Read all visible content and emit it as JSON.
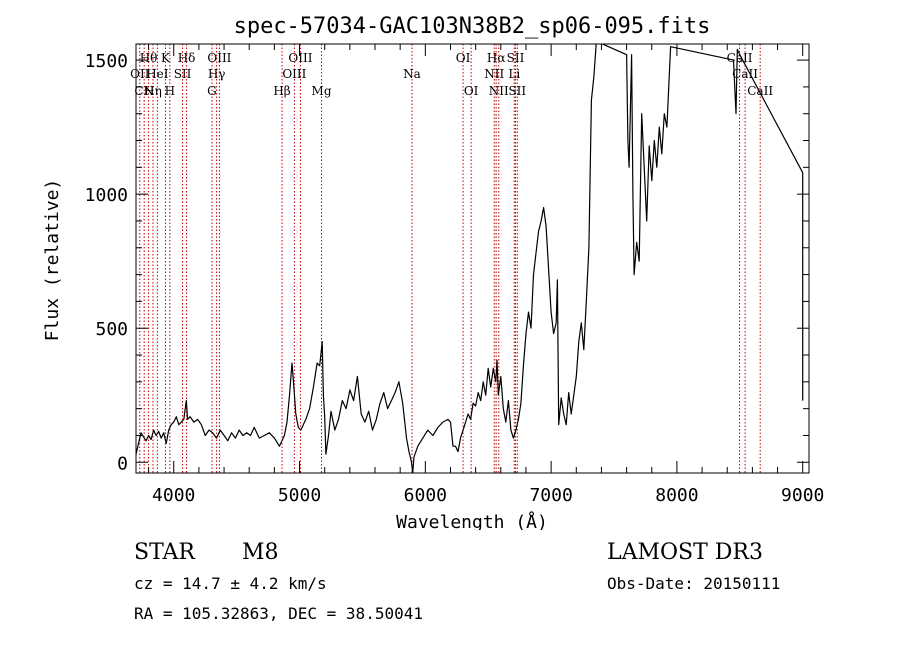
{
  "chart_data": {
    "type": "line",
    "title": "spec-57034-GAC103N38B2_sp06-095.fits",
    "xlabel": "Wavelength (Å)",
    "ylabel": "Flux (relative)",
    "xlim": [
      3700,
      9050
    ],
    "ylim": [
      -40,
      1560
    ],
    "xticks": [
      4000,
      5000,
      6000,
      7000,
      8000,
      9000
    ],
    "yticks": [
      0,
      500,
      1000,
      1500
    ],
    "line_color": "#000000",
    "marker_color": "#c00000",
    "grid": false,
    "series": [
      {
        "values": [
          [
            3700,
            30
          ],
          [
            3720,
            70
          ],
          [
            3740,
            110
          ],
          [
            3760,
            95
          ],
          [
            3780,
            80
          ],
          [
            3800,
            100
          ],
          [
            3820,
            85
          ],
          [
            3840,
            120
          ],
          [
            3860,
            100
          ],
          [
            3880,
            115
          ],
          [
            3900,
            90
          ],
          [
            3920,
            110
          ],
          [
            3940,
            70
          ],
          [
            3960,
            120
          ],
          [
            3980,
            140
          ],
          [
            4000,
            150
          ],
          [
            4020,
            170
          ],
          [
            4040,
            140
          ],
          [
            4060,
            150
          ],
          [
            4080,
            160
          ],
          [
            4100,
            230
          ],
          [
            4110,
            160
          ],
          [
            4130,
            170
          ],
          [
            4160,
            150
          ],
          [
            4190,
            160
          ],
          [
            4220,
            140
          ],
          [
            4250,
            100
          ],
          [
            4280,
            120
          ],
          [
            4310,
            110
          ],
          [
            4340,
            90
          ],
          [
            4370,
            120
          ],
          [
            4400,
            100
          ],
          [
            4430,
            80
          ],
          [
            4460,
            110
          ],
          [
            4490,
            90
          ],
          [
            4520,
            120
          ],
          [
            4550,
            100
          ],
          [
            4580,
            110
          ],
          [
            4610,
            100
          ],
          [
            4640,
            130
          ],
          [
            4680,
            90
          ],
          [
            4720,
            100
          ],
          [
            4760,
            110
          ],
          [
            4800,
            90
          ],
          [
            4840,
            60
          ],
          [
            4880,
            100
          ],
          [
            4900,
            150
          ],
          [
            4920,
            250
          ],
          [
            4940,
            370
          ],
          [
            4955,
            280
          ],
          [
            4970,
            180
          ],
          [
            4990,
            130
          ],
          [
            5010,
            120
          ],
          [
            5030,
            140
          ],
          [
            5050,
            160
          ],
          [
            5080,
            200
          ],
          [
            5110,
            280
          ],
          [
            5140,
            370
          ],
          [
            5160,
            360
          ],
          [
            5180,
            450
          ],
          [
            5190,
            250
          ],
          [
            5200,
            170
          ],
          [
            5210,
            30
          ],
          [
            5230,
            100
          ],
          [
            5250,
            190
          ],
          [
            5280,
            120
          ],
          [
            5310,
            160
          ],
          [
            5340,
            230
          ],
          [
            5370,
            200
          ],
          [
            5400,
            270
          ],
          [
            5430,
            230
          ],
          [
            5460,
            320
          ],
          [
            5490,
            180
          ],
          [
            5520,
            150
          ],
          [
            5550,
            190
          ],
          [
            5580,
            120
          ],
          [
            5610,
            160
          ],
          [
            5640,
            220
          ],
          [
            5670,
            260
          ],
          [
            5700,
            200
          ],
          [
            5730,
            230
          ],
          [
            5760,
            260
          ],
          [
            5790,
            300
          ],
          [
            5820,
            220
          ],
          [
            5850,
            90
          ],
          [
            5870,
            40
          ],
          [
            5890,
            0
          ],
          [
            5900,
            -40
          ],
          [
            5910,
            20
          ],
          [
            5940,
            60
          ],
          [
            5980,
            90
          ],
          [
            6020,
            120
          ],
          [
            6060,
            100
          ],
          [
            6100,
            130
          ],
          [
            6140,
            150
          ],
          [
            6180,
            160
          ],
          [
            6200,
            150
          ],
          [
            6220,
            60
          ],
          [
            6240,
            60
          ],
          [
            6260,
            40
          ],
          [
            6280,
            90
          ],
          [
            6300,
            120
          ],
          [
            6320,
            150
          ],
          [
            6340,
            180
          ],
          [
            6360,
            160
          ],
          [
            6380,
            220
          ],
          [
            6400,
            210
          ],
          [
            6420,
            260
          ],
          [
            6440,
            230
          ],
          [
            6460,
            300
          ],
          [
            6480,
            250
          ],
          [
            6500,
            350
          ],
          [
            6520,
            280
          ],
          [
            6540,
            350
          ],
          [
            6560,
            300
          ],
          [
            6570,
            380
          ],
          [
            6580,
            250
          ],
          [
            6600,
            320
          ],
          [
            6620,
            200
          ],
          [
            6640,
            150
          ],
          [
            6660,
            230
          ],
          [
            6680,
            120
          ],
          [
            6700,
            90
          ],
          [
            6720,
            120
          ],
          [
            6740,
            160
          ],
          [
            6760,
            220
          ],
          [
            6780,
            360
          ],
          [
            6800,
            480
          ],
          [
            6820,
            560
          ],
          [
            6840,
            500
          ],
          [
            6860,
            700
          ],
          [
            6880,
            780
          ],
          [
            6900,
            860
          ],
          [
            6920,
            900
          ],
          [
            6940,
            950
          ],
          [
            6960,
            880
          ],
          [
            6980,
            720
          ],
          [
            7000,
            560
          ],
          [
            7020,
            480
          ],
          [
            7040,
            520
          ],
          [
            7050,
            680
          ],
          [
            7060,
            140
          ],
          [
            7080,
            240
          ],
          [
            7100,
            180
          ],
          [
            7120,
            140
          ],
          [
            7140,
            260
          ],
          [
            7160,
            180
          ],
          [
            7180,
            250
          ],
          [
            7200,
            320
          ],
          [
            7220,
            450
          ],
          [
            7240,
            520
          ],
          [
            7260,
            420
          ],
          [
            7280,
            600
          ],
          [
            7300,
            800
          ],
          [
            7320,
            1350
          ],
          [
            7340,
            1440
          ],
          [
            7360,
            1570
          ],
          [
            7600,
            1520
          ],
          [
            7610,
            1200
          ],
          [
            7620,
            1100
          ],
          [
            7640,
            1520
          ],
          [
            7650,
            1000
          ],
          [
            7660,
            700
          ],
          [
            7680,
            820
          ],
          [
            7700,
            750
          ],
          [
            7720,
            1300
          ],
          [
            7740,
            1100
          ],
          [
            7760,
            900
          ],
          [
            7780,
            1180
          ],
          [
            7800,
            1050
          ],
          [
            7820,
            1200
          ],
          [
            7840,
            1100
          ],
          [
            7860,
            1250
          ],
          [
            7880,
            1150
          ],
          [
            7900,
            1300
          ],
          [
            7920,
            1250
          ],
          [
            7950,
            1550
          ],
          [
            8450,
            1500
          ],
          [
            8470,
            1300
          ],
          [
            8480,
            1540
          ],
          [
            8500,
            1520
          ],
          [
            9000,
            1080
          ],
          [
            9000,
            230
          ]
        ]
      }
    ],
    "lines": [
      {
        "x": 3730,
        "label": "OII",
        "row": 1
      },
      {
        "x": 3765,
        "label": "CN",
        "row": 2
      },
      {
        "x": 3800,
        "label": "Hθ",
        "row": 0
      },
      {
        "x": 3835,
        "label": "Hη",
        "row": 2
      },
      {
        "x": 3870,
        "label": "HeI",
        "row": 1
      },
      {
        "x": 3934,
        "label": "K",
        "row": 0
      },
      {
        "x": 3969,
        "label": "H",
        "row": 2
      },
      {
        "x": 4070,
        "label": "SII",
        "row": 1
      },
      {
        "x": 4102,
        "label": "Hδ",
        "row": 0
      },
      {
        "x": 4304,
        "label": "G",
        "row": 2
      },
      {
        "x": 4341,
        "label": "Hγ",
        "row": 1
      },
      {
        "x": 4363,
        "label": "OIII",
        "row": 0
      },
      {
        "x": 4861,
        "label": "Hβ",
        "row": 2
      },
      {
        "x": 4959,
        "label": "OIII",
        "row": 1
      },
      {
        "x": 5007,
        "label": "OIII",
        "row": 0
      },
      {
        "x": 5175,
        "label": "Mg",
        "row": 2
      },
      {
        "x": 5894,
        "label": "Na",
        "row": 1
      },
      {
        "x": 6300,
        "label": "OI",
        "row": 0
      },
      {
        "x": 6364,
        "label": "OI",
        "row": 2
      },
      {
        "x": 6548,
        "label": "NII",
        "row": 1
      },
      {
        "x": 6563,
        "label": "Hα",
        "row": 0
      },
      {
        "x": 6584,
        "label": "NII",
        "row": 2
      },
      {
        "x": 6707,
        "label": "Li",
        "row": 1
      },
      {
        "x": 6717,
        "label": "SII",
        "row": 0
      },
      {
        "x": 6731,
        "label": "SII",
        "row": 2
      },
      {
        "x": 8498,
        "label": "CaII",
        "row": 0
      },
      {
        "x": 8542,
        "label": "CaII",
        "row": 1
      },
      {
        "x": 8662,
        "label": "CaII",
        "row": 2
      }
    ]
  },
  "info": {
    "class": "STAR",
    "subclass": "M8",
    "survey": "LAMOST DR3",
    "cz": "cz = 14.7 ± 4.2 km/s",
    "obsdate": "Obs-Date: 20150111",
    "radec": "RA = 105.32863, DEC =  38.50041"
  }
}
